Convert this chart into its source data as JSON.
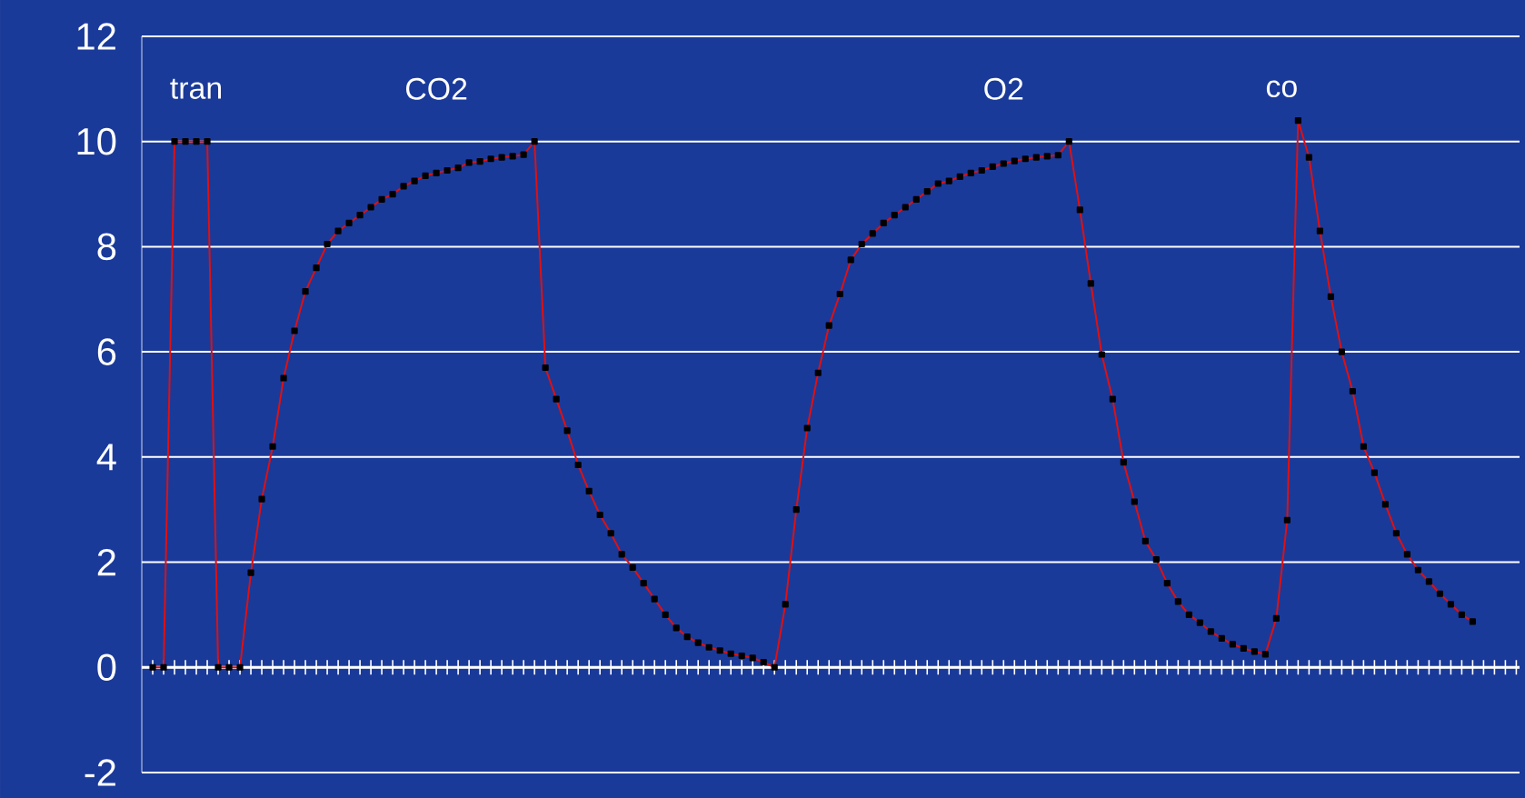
{
  "chart_data": {
    "type": "line",
    "categories": [
      null,
      null,
      null,
      null,
      null,
      null,
      null,
      null,
      null,
      null,
      null,
      null,
      null,
      null,
      null,
      null,
      null,
      null,
      null,
      null,
      null,
      null,
      null,
      null,
      null,
      null,
      null,
      null,
      null,
      null,
      null,
      null,
      null,
      null,
      null,
      null,
      null,
      null,
      null,
      null,
      null,
      null,
      null,
      null,
      null,
      null,
      null,
      null,
      null,
      null,
      null,
      null,
      null,
      null,
      null,
      null,
      null,
      null,
      null,
      null,
      null,
      null,
      null,
      null,
      null,
      null,
      null,
      null,
      null,
      null,
      null,
      null,
      null,
      null,
      null,
      null,
      null,
      null,
      null,
      null,
      null,
      null,
      null,
      null,
      null,
      null,
      null,
      null,
      null,
      null,
      null,
      null,
      null,
      null,
      null,
      null,
      null,
      null,
      null,
      null,
      null,
      null,
      null,
      null,
      null,
      null,
      null,
      null,
      null,
      null,
      null,
      null,
      null,
      null,
      null,
      null,
      null,
      null,
      null,
      null,
      null,
      null
    ],
    "series": [
      {
        "color": "#e01010",
        "values": [
          0,
          0,
          10,
          10,
          10,
          10,
          0,
          0,
          0,
          1.8,
          3.2,
          4.2,
          5.5,
          6.4,
          7.15,
          7.6,
          8.05,
          8.3,
          8.45,
          8.6,
          8.75,
          8.9,
          9.0,
          9.15,
          9.25,
          9.35,
          9.4,
          9.45,
          9.5,
          9.6,
          9.62,
          9.67,
          9.7,
          9.72,
          9.75,
          10,
          5.7,
          5.1,
          4.5,
          3.85,
          3.35,
          2.9,
          2.55,
          2.15,
          1.9,
          1.6,
          1.3,
          1.0,
          0.75,
          0.58,
          0.47,
          0.38,
          0.32,
          0.26,
          0.22,
          0.18,
          0.1,
          0,
          1.2,
          3.0,
          4.55,
          5.6,
          6.5,
          7.1,
          7.75,
          8.05,
          8.25,
          8.45,
          8.6,
          8.75,
          8.9,
          9.05,
          9.2,
          9.25,
          9.33,
          9.4,
          9.45,
          9.52,
          9.58,
          9.63,
          9.67,
          9.7,
          9.72,
          9.74,
          10,
          8.7,
          7.3,
          5.95,
          5.1,
          3.9,
          3.15,
          2.4,
          2.05,
          1.6,
          1.25,
          1.0,
          0.85,
          0.68,
          0.55,
          0.44,
          0.36,
          0.3,
          0.25,
          0.93,
          2.8,
          10.4,
          9.7,
          8.3,
          7.05,
          6.0,
          5.25,
          4.2,
          3.7,
          3.1,
          2.55,
          2.15,
          1.85,
          1.63,
          1.4,
          1.2,
          1.0,
          0.87
        ]
      }
    ],
    "ylim": [
      -2,
      12
    ],
    "yticks": [
      -2,
      0,
      2,
      4,
      6,
      8,
      10,
      12
    ],
    "grid": "y",
    "tick_labels": "y",
    "marker": "square",
    "line_style": "solid",
    "annotations": [
      "tran",
      "CO2",
      "O2",
      "co"
    ]
  }
}
